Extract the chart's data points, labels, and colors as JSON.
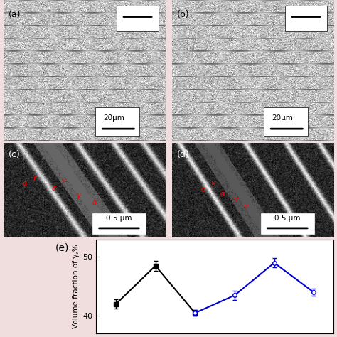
{
  "title": "(e)",
  "ylabel": "Volume fraction of γ,%",
  "black_series": {
    "x": [
      1,
      2,
      3
    ],
    "y": [
      42.0,
      48.5,
      40.5
    ],
    "yerr": [
      0.8,
      0.8,
      0.5
    ],
    "color": "black",
    "marker": "s",
    "markersize": 4,
    "linewidth": 1.5
  },
  "blue_series": {
    "x": [
      3,
      4,
      5,
      6
    ],
    "y": [
      40.5,
      43.5,
      49.0,
      44.0
    ],
    "yerr": [
      0.5,
      0.8,
      0.8,
      0.6
    ],
    "color": "#0000CC",
    "marker": "o",
    "markerfacecolor": "white",
    "markersize": 4,
    "linewidth": 1.5
  },
  "ylim": [
    37,
    53
  ],
  "yticks": [
    40,
    50
  ],
  "xlim": [
    0.5,
    6.5
  ],
  "bg_color": "#f0dede",
  "plot_bg": "white",
  "figsize": [
    4.74,
    4.74
  ],
  "dpi": 100,
  "panel_a_label": "(a)",
  "panel_b_label": "(b)",
  "panel_c_label": "(c)",
  "panel_d_label": "(d)",
  "scale_20um": "20μm",
  "scale_05um": "0.5 μm"
}
